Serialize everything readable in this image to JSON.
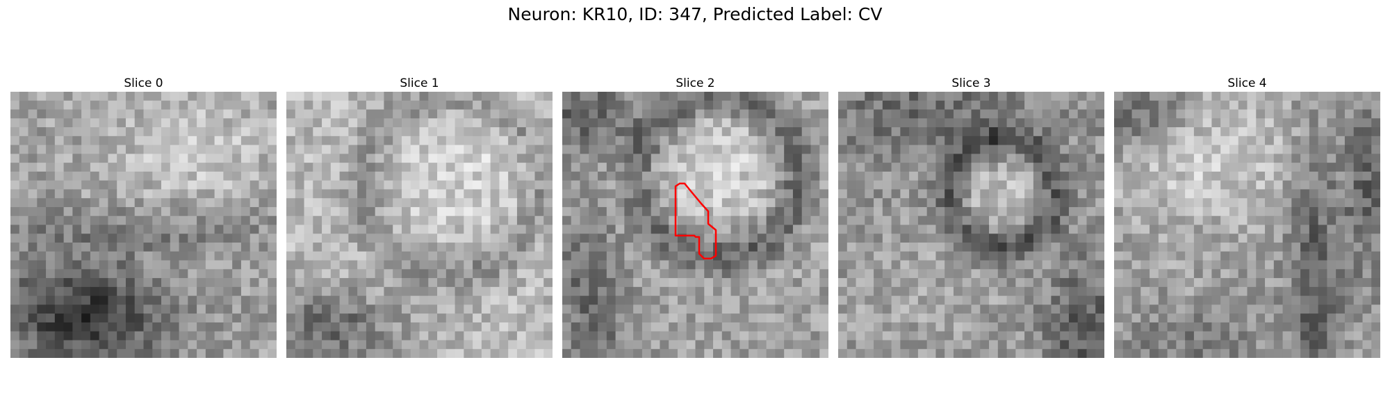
{
  "figure": {
    "title": "Neuron: KR10, ID: 347, Predicted Label: CV"
  },
  "slices": [
    {
      "title": "Slice 0"
    },
    {
      "title": "Slice 1"
    },
    {
      "title": "Slice 2",
      "has_contour": true,
      "contour_color": "#ff0000"
    },
    {
      "title": "Slice 3"
    },
    {
      "title": "Slice 4"
    }
  ],
  "colormap": "gray"
}
